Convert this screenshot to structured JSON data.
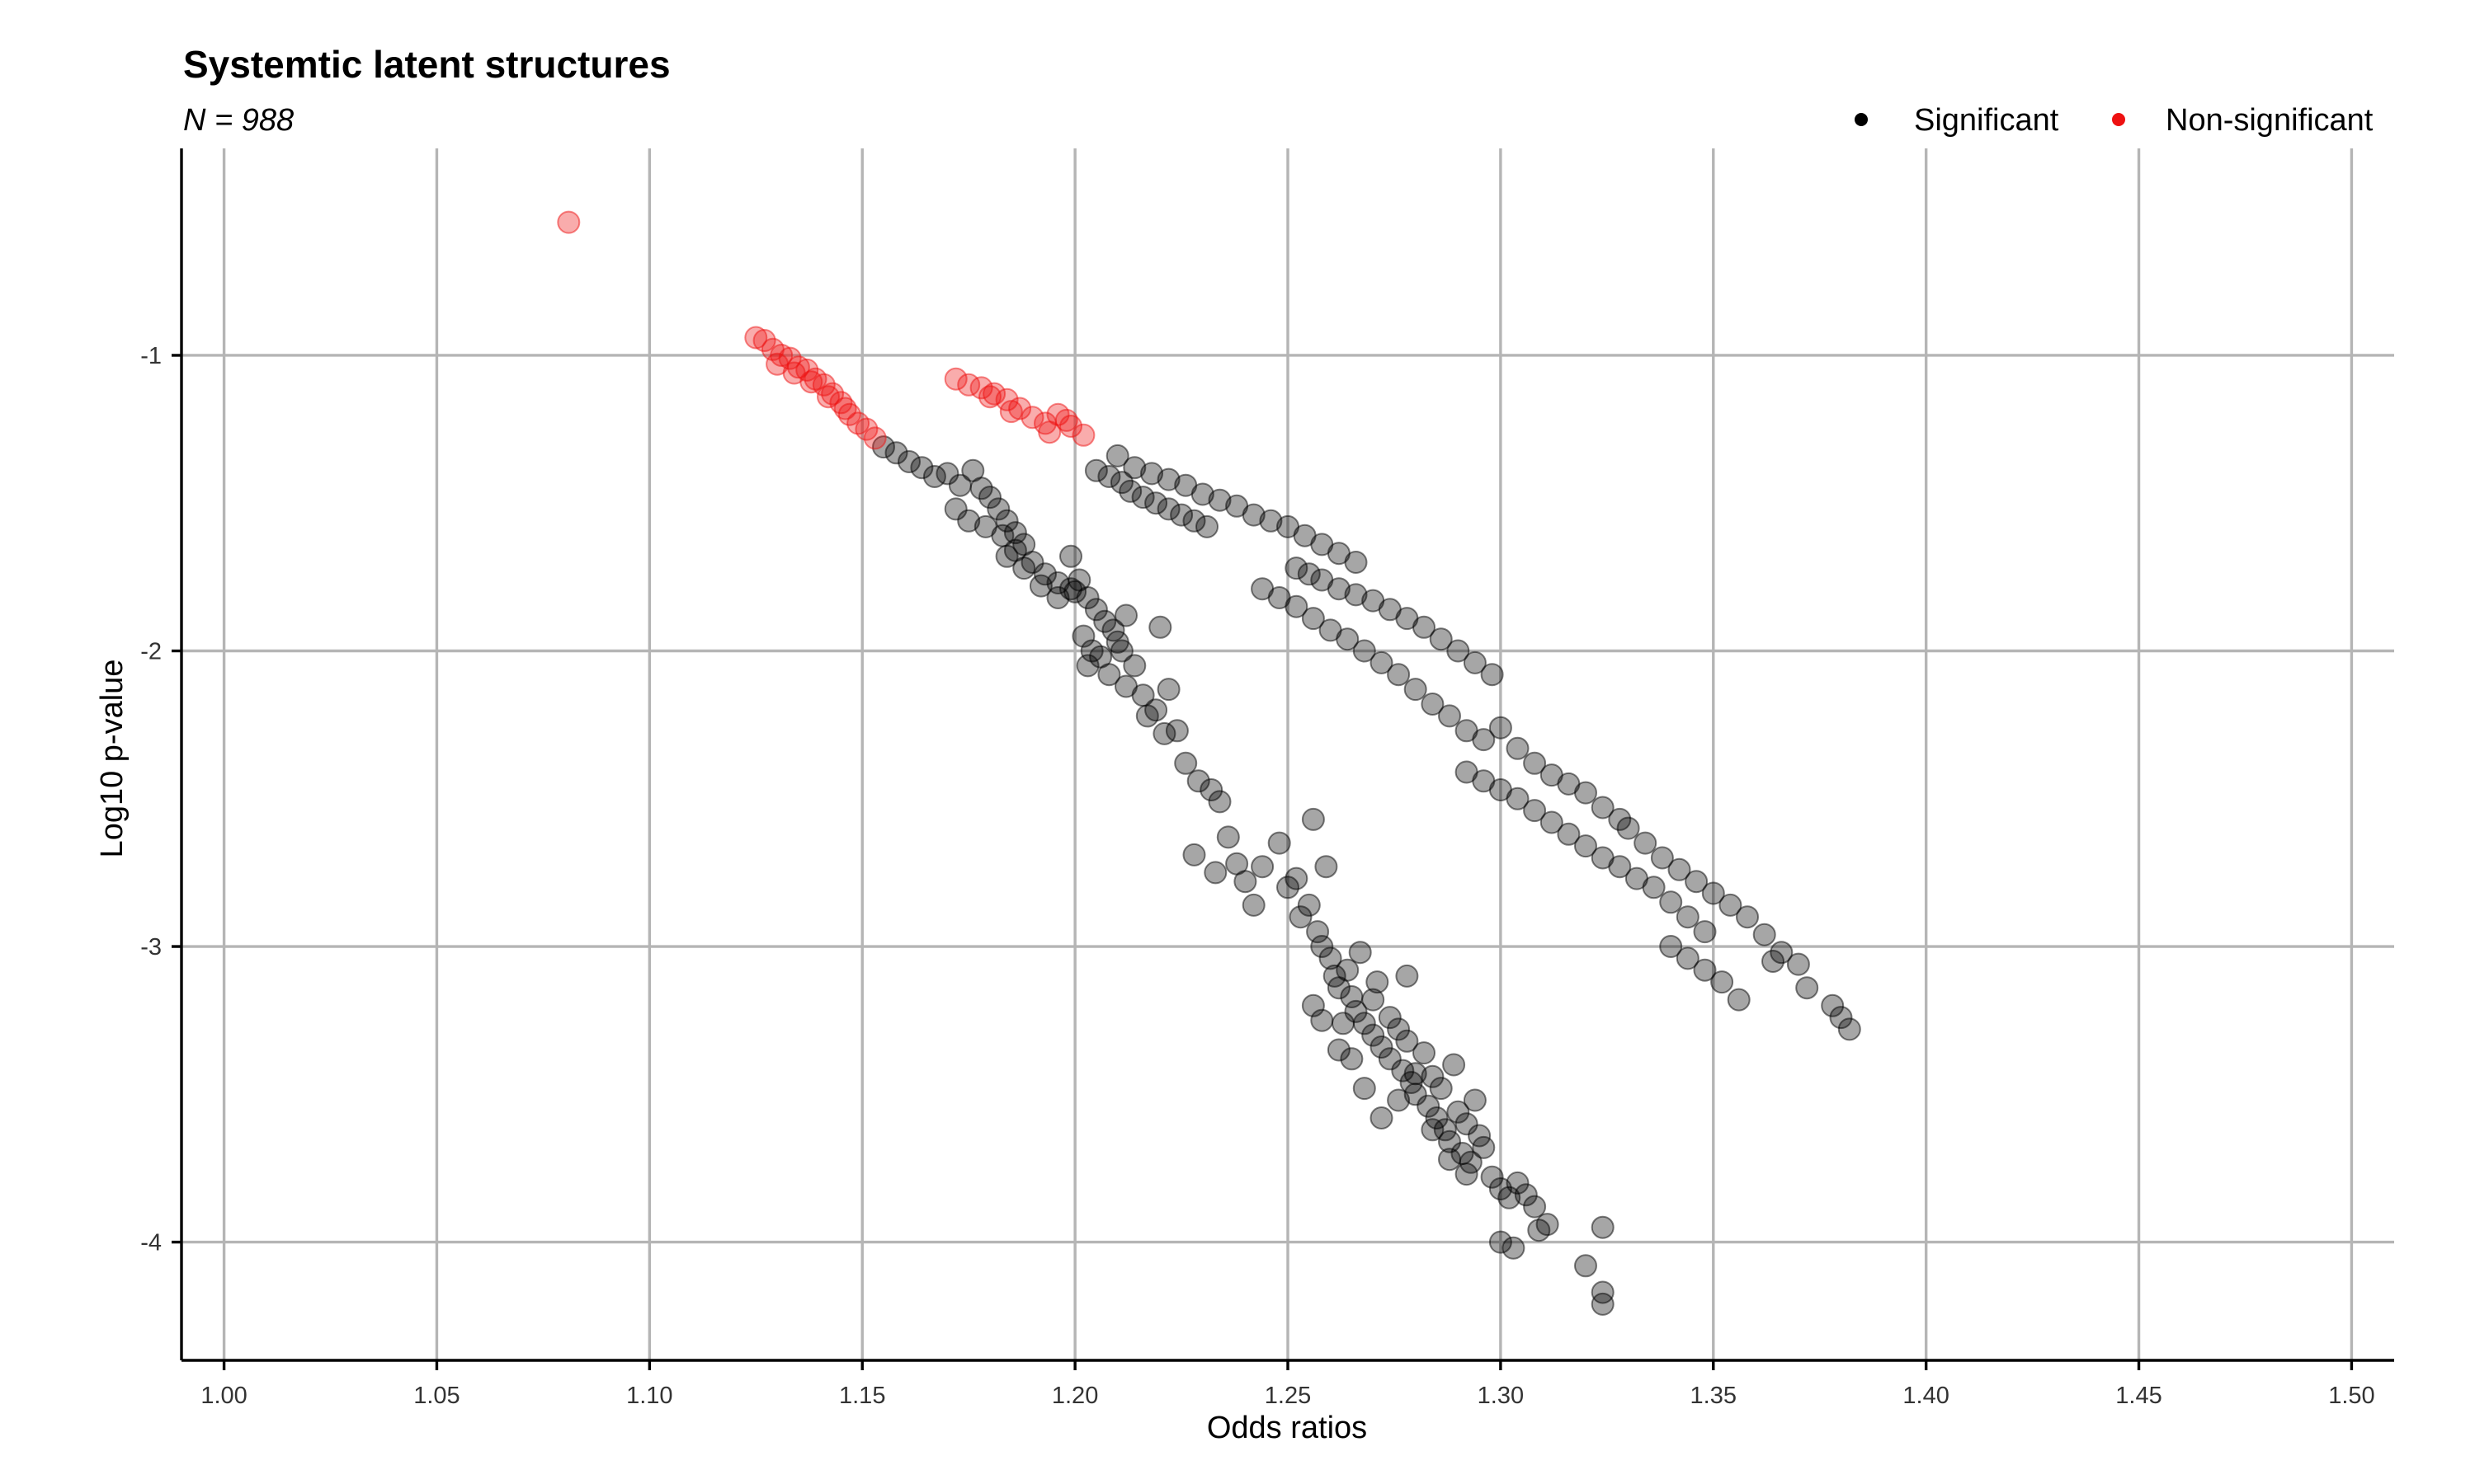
{
  "chart_data": {
    "type": "scatter",
    "title": "Systemtic latent structures",
    "subtitle": "N = 988",
    "xlabel": "Odds ratios",
    "ylabel": "Log10 p-value",
    "xlim": [
      0.99,
      1.51
    ],
    "ylim": [
      -4.4,
      -0.3
    ],
    "x_ticks": [
      1.0,
      1.05,
      1.1,
      1.15,
      1.2,
      1.25,
      1.3,
      1.35,
      1.4,
      1.45,
      1.5
    ],
    "x_tick_labels": [
      "1.00",
      "1.05",
      "1.10",
      "1.15",
      "1.20",
      "1.25",
      "1.30",
      "1.35",
      "1.40",
      "1.45",
      "1.50"
    ],
    "y_ticks": [
      -1,
      -2,
      -3,
      -4
    ],
    "y_tick_labels": [
      "-1",
      "-2",
      "-3",
      "-4"
    ],
    "grid": true,
    "legend_position": "top-right",
    "point_opacity": 0.35,
    "series": [
      {
        "name": "Significant",
        "color": "#000000",
        "points": [
          [
            1.155,
            -1.31
          ],
          [
            1.158,
            -1.33
          ],
          [
            1.161,
            -1.36
          ],
          [
            1.164,
            -1.38
          ],
          [
            1.167,
            -1.41
          ],
          [
            1.17,
            -1.4
          ],
          [
            1.173,
            -1.44
          ],
          [
            1.176,
            -1.39
          ],
          [
            1.178,
            -1.45
          ],
          [
            1.18,
            -1.48
          ],
          [
            1.182,
            -1.52
          ],
          [
            1.184,
            -1.56
          ],
          [
            1.186,
            -1.6
          ],
          [
            1.188,
            -1.64
          ],
          [
            1.172,
            -1.52
          ],
          [
            1.175,
            -1.56
          ],
          [
            1.179,
            -1.58
          ],
          [
            1.183,
            -1.61
          ],
          [
            1.186,
            -1.66
          ],
          [
            1.19,
            -1.7
          ],
          [
            1.193,
            -1.74
          ],
          [
            1.196,
            -1.77
          ],
          [
            1.199,
            -1.79
          ],
          [
            1.201,
            -1.76
          ],
          [
            1.203,
            -1.82
          ],
          [
            1.205,
            -1.86
          ],
          [
            1.207,
            -1.9
          ],
          [
            1.209,
            -1.93
          ],
          [
            1.21,
            -1.97
          ],
          [
            1.211,
            -2.0
          ],
          [
            1.212,
            -1.88
          ],
          [
            1.199,
            -1.68
          ],
          [
            1.203,
            -2.05
          ],
          [
            1.204,
            -2.0
          ],
          [
            1.208,
            -2.08
          ],
          [
            1.212,
            -2.12
          ],
          [
            1.216,
            -2.15
          ],
          [
            1.219,
            -2.2
          ],
          [
            1.222,
            -2.13
          ],
          [
            1.221,
            -2.28
          ],
          [
            1.224,
            -2.27
          ],
          [
            1.22,
            -1.92
          ],
          [
            1.226,
            -2.38
          ],
          [
            1.229,
            -2.44
          ],
          [
            1.232,
            -2.47
          ],
          [
            1.234,
            -2.51
          ],
          [
            1.236,
            -2.63
          ],
          [
            1.238,
            -2.72
          ],
          [
            1.24,
            -2.78
          ],
          [
            1.242,
            -2.86
          ],
          [
            1.228,
            -2.69
          ],
          [
            1.233,
            -2.75
          ],
          [
            1.244,
            -2.73
          ],
          [
            1.248,
            -2.65
          ],
          [
            1.25,
            -2.8
          ],
          [
            1.252,
            -2.77
          ],
          [
            1.253,
            -2.9
          ],
          [
            1.255,
            -2.86
          ],
          [
            1.256,
            -2.57
          ],
          [
            1.257,
            -2.95
          ],
          [
            1.258,
            -3.0
          ],
          [
            1.259,
            -2.73
          ],
          [
            1.26,
            -3.04
          ],
          [
            1.261,
            -3.1
          ],
          [
            1.262,
            -3.14
          ],
          [
            1.264,
            -3.08
          ],
          [
            1.265,
            -3.17
          ],
          [
            1.266,
            -3.22
          ],
          [
            1.267,
            -3.02
          ],
          [
            1.268,
            -3.26
          ],
          [
            1.27,
            -3.3
          ],
          [
            1.271,
            -3.12
          ],
          [
            1.272,
            -3.34
          ],
          [
            1.274,
            -3.38
          ],
          [
            1.276,
            -3.28
          ],
          [
            1.277,
            -3.42
          ],
          [
            1.278,
            -3.32
          ],
          [
            1.279,
            -3.46
          ],
          [
            1.28,
            -3.5
          ],
          [
            1.282,
            -3.36
          ],
          [
            1.283,
            -3.54
          ],
          [
            1.284,
            -3.44
          ],
          [
            1.285,
            -3.58
          ],
          [
            1.286,
            -3.48
          ],
          [
            1.287,
            -3.62
          ],
          [
            1.288,
            -3.66
          ],
          [
            1.29,
            -3.56
          ],
          [
            1.291,
            -3.7
          ],
          [
            1.292,
            -3.6
          ],
          [
            1.293,
            -3.73
          ],
          [
            1.294,
            -3.52
          ],
          [
            1.295,
            -3.64
          ],
          [
            1.296,
            -3.68
          ],
          [
            1.298,
            -3.78
          ],
          [
            1.3,
            -3.82
          ],
          [
            1.302,
            -3.85
          ],
          [
            1.304,
            -3.8
          ],
          [
            1.306,
            -3.84
          ],
          [
            1.308,
            -3.88
          ],
          [
            1.3,
            -4.0
          ],
          [
            1.303,
            -4.02
          ],
          [
            1.309,
            -3.96
          ],
          [
            1.311,
            -3.94
          ],
          [
            1.32,
            -4.08
          ],
          [
            1.324,
            -3.95
          ],
          [
            1.324,
            -4.17
          ],
          [
            1.324,
            -4.21
          ],
          [
            1.256,
            -3.2
          ],
          [
            1.258,
            -3.25
          ],
          [
            1.262,
            -3.35
          ],
          [
            1.265,
            -3.38
          ],
          [
            1.268,
            -3.48
          ],
          [
            1.272,
            -3.58
          ],
          [
            1.276,
            -3.52
          ],
          [
            1.28,
            -3.43
          ],
          [
            1.284,
            -3.62
          ],
          [
            1.288,
            -3.72
          ],
          [
            1.292,
            -3.77
          ],
          [
            1.263,
            -3.26
          ],
          [
            1.27,
            -3.18
          ],
          [
            1.274,
            -3.24
          ],
          [
            1.278,
            -3.1
          ],
          [
            1.289,
            -3.4
          ],
          [
            1.205,
            -1.39
          ],
          [
            1.208,
            -1.41
          ],
          [
            1.211,
            -1.43
          ],
          [
            1.213,
            -1.46
          ],
          [
            1.216,
            -1.48
          ],
          [
            1.219,
            -1.5
          ],
          [
            1.222,
            -1.52
          ],
          [
            1.225,
            -1.54
          ],
          [
            1.228,
            -1.56
          ],
          [
            1.231,
            -1.58
          ],
          [
            1.21,
            -1.34
          ],
          [
            1.214,
            -1.38
          ],
          [
            1.218,
            -1.4
          ],
          [
            1.222,
            -1.42
          ],
          [
            1.226,
            -1.44
          ],
          [
            1.23,
            -1.47
          ],
          [
            1.234,
            -1.49
          ],
          [
            1.238,
            -1.51
          ],
          [
            1.242,
            -1.54
          ],
          [
            1.246,
            -1.56
          ],
          [
            1.25,
            -1.58
          ],
          [
            1.254,
            -1.61
          ],
          [
            1.258,
            -1.64
          ],
          [
            1.262,
            -1.67
          ],
          [
            1.266,
            -1.7
          ],
          [
            1.252,
            -1.72
          ],
          [
            1.255,
            -1.74
          ],
          [
            1.258,
            -1.76
          ],
          [
            1.262,
            -1.79
          ],
          [
            1.266,
            -1.81
          ],
          [
            1.27,
            -1.83
          ],
          [
            1.274,
            -1.86
          ],
          [
            1.278,
            -1.89
          ],
          [
            1.282,
            -1.92
          ],
          [
            1.286,
            -1.96
          ],
          [
            1.29,
            -2.0
          ],
          [
            1.294,
            -2.04
          ],
          [
            1.298,
            -2.08
          ],
          [
            1.244,
            -1.79
          ],
          [
            1.248,
            -1.82
          ],
          [
            1.252,
            -1.85
          ],
          [
            1.256,
            -1.89
          ],
          [
            1.26,
            -1.93
          ],
          [
            1.264,
            -1.96
          ],
          [
            1.268,
            -2.0
          ],
          [
            1.272,
            -2.04
          ],
          [
            1.276,
            -2.08
          ],
          [
            1.28,
            -2.13
          ],
          [
            1.284,
            -2.18
          ],
          [
            1.288,
            -2.22
          ],
          [
            1.292,
            -2.27
          ],
          [
            1.296,
            -2.3
          ],
          [
            1.3,
            -2.26
          ],
          [
            1.304,
            -2.33
          ],
          [
            1.308,
            -2.38
          ],
          [
            1.312,
            -2.42
          ],
          [
            1.316,
            -2.45
          ],
          [
            1.32,
            -2.48
          ],
          [
            1.324,
            -2.53
          ],
          [
            1.328,
            -2.57
          ],
          [
            1.292,
            -2.41
          ],
          [
            1.296,
            -2.44
          ],
          [
            1.3,
            -2.47
          ],
          [
            1.304,
            -2.5
          ],
          [
            1.308,
            -2.54
          ],
          [
            1.312,
            -2.58
          ],
          [
            1.316,
            -2.62
          ],
          [
            1.32,
            -2.66
          ],
          [
            1.324,
            -2.7
          ],
          [
            1.328,
            -2.73
          ],
          [
            1.332,
            -2.77
          ],
          [
            1.336,
            -2.8
          ],
          [
            1.34,
            -2.85
          ],
          [
            1.344,
            -2.9
          ],
          [
            1.348,
            -2.95
          ],
          [
            1.33,
            -2.6
          ],
          [
            1.334,
            -2.65
          ],
          [
            1.338,
            -2.7
          ],
          [
            1.342,
            -2.74
          ],
          [
            1.346,
            -2.78
          ],
          [
            1.35,
            -2.82
          ],
          [
            1.354,
            -2.86
          ],
          [
            1.358,
            -2.9
          ],
          [
            1.362,
            -2.96
          ],
          [
            1.366,
            -3.02
          ],
          [
            1.37,
            -3.06
          ],
          [
            1.34,
            -3.0
          ],
          [
            1.344,
            -3.04
          ],
          [
            1.348,
            -3.08
          ],
          [
            1.352,
            -3.12
          ],
          [
            1.356,
            -3.18
          ],
          [
            1.372,
            -3.14
          ],
          [
            1.378,
            -3.2
          ],
          [
            1.382,
            -3.28
          ],
          [
            1.38,
            -3.24
          ],
          [
            1.364,
            -3.05
          ],
          [
            1.2,
            -1.8
          ],
          [
            1.196,
            -1.82
          ],
          [
            1.192,
            -1.78
          ],
          [
            1.188,
            -1.72
          ],
          [
            1.184,
            -1.68
          ],
          [
            1.202,
            -1.95
          ],
          [
            1.206,
            -2.02
          ],
          [
            1.214,
            -2.05
          ],
          [
            1.217,
            -2.22
          ]
        ]
      },
      {
        "name": "Non-significant",
        "color": "#ee1111",
        "points": [
          [
            1.081,
            -0.55
          ],
          [
            1.125,
            -0.94
          ],
          [
            1.127,
            -0.95
          ],
          [
            1.129,
            -0.98
          ],
          [
            1.131,
            -1.0
          ],
          [
            1.133,
            -1.01
          ],
          [
            1.135,
            -1.04
          ],
          [
            1.137,
            -1.05
          ],
          [
            1.139,
            -1.08
          ],
          [
            1.141,
            -1.1
          ],
          [
            1.143,
            -1.13
          ],
          [
            1.145,
            -1.16
          ],
          [
            1.147,
            -1.2
          ],
          [
            1.149,
            -1.23
          ],
          [
            1.151,
            -1.25
          ],
          [
            1.153,
            -1.28
          ],
          [
            1.13,
            -1.03
          ],
          [
            1.134,
            -1.06
          ],
          [
            1.138,
            -1.09
          ],
          [
            1.142,
            -1.14
          ],
          [
            1.146,
            -1.18
          ],
          [
            1.172,
            -1.08
          ],
          [
            1.175,
            -1.1
          ],
          [
            1.178,
            -1.11
          ],
          [
            1.181,
            -1.13
          ],
          [
            1.184,
            -1.15
          ],
          [
            1.187,
            -1.18
          ],
          [
            1.19,
            -1.21
          ],
          [
            1.193,
            -1.23
          ],
          [
            1.196,
            -1.2
          ],
          [
            1.199,
            -1.24
          ],
          [
            1.202,
            -1.27
          ],
          [
            1.194,
            -1.26
          ],
          [
            1.185,
            -1.19
          ],
          [
            1.18,
            -1.14
          ],
          [
            1.198,
            -1.22
          ]
        ]
      }
    ]
  }
}
